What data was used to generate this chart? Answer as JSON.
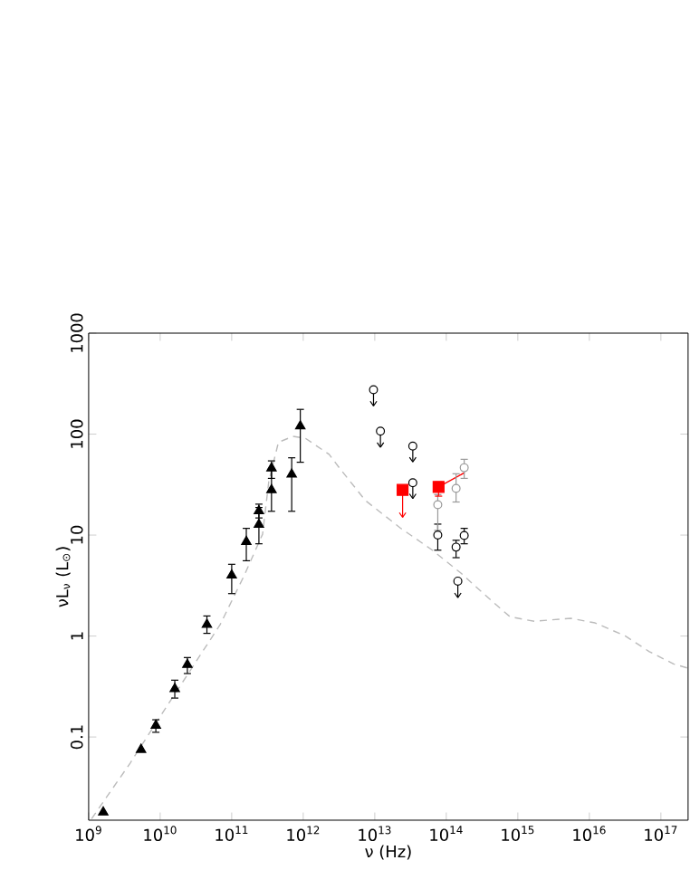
{
  "chart_data": {
    "type": "scatter",
    "xlabel": "ν (Hz)",
    "ylabel": "νL$_{ν}$ (L$_{⊙}$)",
    "log": "xy",
    "xlim": [
      1000000000.0,
      2.4e+17
    ],
    "ylim": [
      0.015,
      1000
    ],
    "xticks": [
      {
        "value": 1000000000.0,
        "label": "10$^{9}$"
      },
      {
        "value": 10000000000.0,
        "label": "10$^{10}$"
      },
      {
        "value": 100000000000.0,
        "label": "10$^{11}$"
      },
      {
        "value": 1000000000000.0,
        "label": "10$^{12}$"
      },
      {
        "value": 10000000000000.0,
        "label": "10$^{13}$"
      },
      {
        "value": 100000000000000.0,
        "label": "10$^{14}$"
      },
      {
        "value": 1000000000000000.0,
        "label": "10$^{15}$"
      },
      {
        "value": 1e+16,
        "label": "10$^{16}$"
      },
      {
        "value": 1e+17,
        "label": "10$^{17}$"
      }
    ],
    "yticks": [
      0.1,
      1,
      10,
      100,
      1000
    ],
    "series": [
      {
        "type": "line",
        "color": "#bbbbbb",
        "line_style": "dashed",
        "marker": "none",
        "x": [
          1100000000.0,
          3800000000.0,
          10000000000.0,
          26000000000.0,
          69000000000.0,
          150000000000.0,
          270000000000.0,
          330000000000.0,
          450000000000.0,
          720000000000.0,
          1070000000000.0,
          2300000000000.0,
          3300000000000.0,
          7400000000000.0,
          23000000000000.0,
          62000000000000.0,
          160000000000000.0,
          440000000000000.0,
          780000000000000.0,
          1700000000000000.0,
          5500000000000000.0,
          1.2e+16,
          3.2e+16,
          6.9e+16,
          1.5e+17,
          2.4e+17
        ],
        "values": [
          0.0155,
          0.055,
          0.16,
          0.45,
          1.3,
          4.0,
          10.2,
          34,
          83,
          95,
          91,
          63,
          45,
          22,
          11.7,
          7.2,
          4.2,
          2.2,
          1.55,
          1.4,
          1.5,
          1.35,
          1.0,
          0.7,
          0.53,
          0.48
        ]
      },
      {
        "color": "#000000",
        "marker": "triangle",
        "x": [
          1600000000.0,
          5400000000.0,
          8700000000.0,
          16000000000.0,
          24000000000.0,
          45000000000.0,
          100000000000.0,
          160000000000.0,
          240000000000.0,
          240000000000.0,
          360000000000.0,
          360000000000.0,
          690000000000.0,
          910000000000.0
        ],
        "values": [
          0.018,
          0.075,
          0.13,
          0.3,
          0.52,
          1.3,
          4.0,
          8.6,
          12.7,
          17.3,
          28,
          46,
          40,
          120
        ],
        "errors": [
          null,
          null,
          [
            0.11,
            0.15
          ],
          [
            0.24,
            0.37
          ],
          [
            0.42,
            0.62
          ],
          [
            1.05,
            1.6
          ],
          [
            2.6,
            5.2
          ],
          [
            5.5,
            11.8
          ],
          [
            8.1,
            19
          ],
          [
            14.6,
            20.5
          ],
          [
            17,
            46
          ],
          [
            36,
            55
          ],
          [
            17,
            59
          ],
          [
            52,
            178
          ]
        ]
      },
      {
        "color": "#000000",
        "marker": "circle",
        "x": [
          9600000000000.0,
          12000000000000.0,
          34000000000000.0,
          34000000000000.0,
          145000000000000.0
        ],
        "values": [
          275,
          107,
          76,
          33,
          3.5
        ],
        "errors": [
          [
            190,
            275
          ],
          [
            74,
            107
          ],
          [
            53,
            76
          ],
          [
            23,
            33
          ],
          [
            2.4,
            3.5
          ]
        ]
      },
      {
        "color": "#000000",
        "marker": "circle",
        "x": [
          76000000000000.0,
          137000000000000.0,
          178000000000000.0
        ],
        "values": [
          10,
          7.6,
          9.9
        ],
        "errors": [
          [
            7,
            13
          ],
          [
            5.9,
            9
          ],
          [
            8.1,
            11.8
          ]
        ]
      },
      {
        "color": "#999999",
        "marker": "circle",
        "x": [
          76000000000000.0,
          137000000000000.0,
          178000000000000.0
        ],
        "values": [
          20,
          29,
          46.5
        ],
        "errors": [
          [
            11,
            25.5
          ],
          [
            21,
            41
          ],
          [
            36,
            57
          ]
        ]
      },
      {
        "type": "line",
        "color": "#ff0000",
        "marker": "none",
        "x": [
          78000000000000.0,
          180000000000000.0
        ],
        "values": [
          30,
          41.5
        ]
      },
      {
        "color": "#ff0000",
        "marker": "square",
        "x": [
          24500000000000.0,
          78000000000000.0
        ],
        "values": [
          28,
          30
        ],
        "errors": [
          [
            15,
            28
          ],
          [
            24,
            34
          ]
        ]
      }
    ]
  }
}
